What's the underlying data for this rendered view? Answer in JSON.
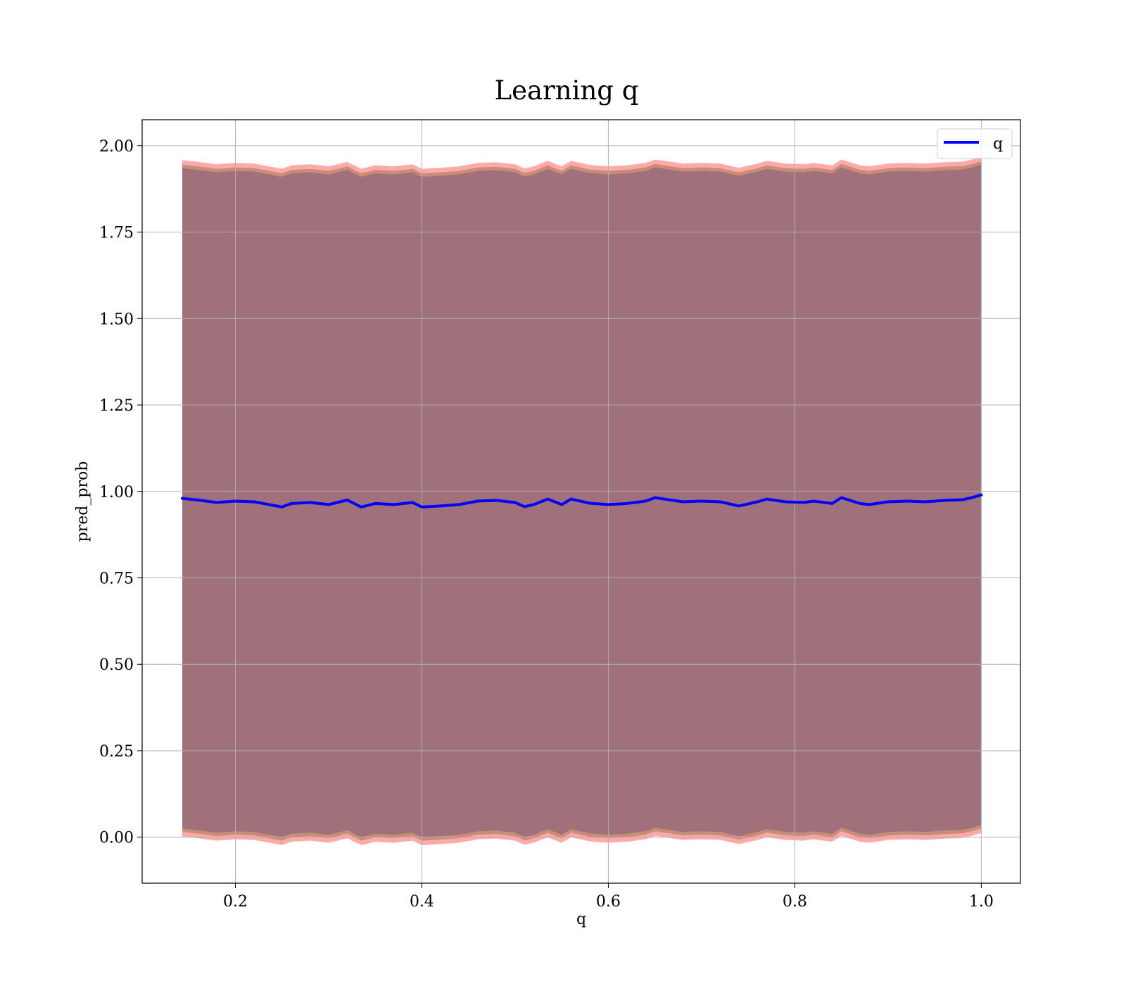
{
  "chart_data": {
    "type": "area",
    "title": "Learning q",
    "xlabel": "q",
    "ylabel": "pred_prob",
    "xlim": [
      0.1,
      1.042
    ],
    "ylim": [
      -0.133,
      2.075
    ],
    "xticks": [
      0.2,
      0.4,
      0.6,
      0.8,
      1.0
    ],
    "xtick_labels": [
      "0.2",
      "0.4",
      "0.6",
      "0.8",
      "1.0"
    ],
    "yticks": [
      0.0,
      0.25,
      0.5,
      0.75,
      1.0,
      1.25,
      1.5,
      1.75,
      2.0
    ],
    "ytick_labels": [
      "0.00",
      "0.25",
      "0.50",
      "0.75",
      "1.00",
      "1.25",
      "1.50",
      "1.75",
      "2.00"
    ],
    "grid": true,
    "legend_position": "top-right",
    "colors": {
      "line": "#0000ff",
      "band_inner": "#a0717a",
      "band_mid": "#c0886f",
      "band_outer": "#ff8c8c"
    },
    "x": [
      0.143,
      0.16,
      0.18,
      0.2,
      0.22,
      0.24,
      0.25,
      0.26,
      0.28,
      0.3,
      0.32,
      0.335,
      0.35,
      0.37,
      0.39,
      0.4,
      0.42,
      0.44,
      0.46,
      0.48,
      0.5,
      0.51,
      0.52,
      0.535,
      0.55,
      0.56,
      0.58,
      0.6,
      0.62,
      0.64,
      0.65,
      0.66,
      0.68,
      0.7,
      0.72,
      0.74,
      0.76,
      0.77,
      0.79,
      0.81,
      0.82,
      0.84,
      0.85,
      0.87,
      0.88,
      0.9,
      0.92,
      0.94,
      0.96,
      0.98,
      0.99,
      1.0
    ],
    "series": [
      {
        "name": "q",
        "values": [
          0.98,
          0.975,
          0.968,
          0.972,
          0.97,
          0.96,
          0.955,
          0.965,
          0.968,
          0.962,
          0.975,
          0.955,
          0.965,
          0.962,
          0.968,
          0.955,
          0.958,
          0.962,
          0.972,
          0.974,
          0.968,
          0.956,
          0.962,
          0.978,
          0.962,
          0.978,
          0.966,
          0.962,
          0.965,
          0.972,
          0.982,
          0.978,
          0.97,
          0.972,
          0.97,
          0.958,
          0.97,
          0.978,
          0.97,
          0.968,
          0.972,
          0.965,
          0.982,
          0.965,
          0.962,
          0.97,
          0.972,
          0.97,
          0.974,
          0.976,
          0.982,
          0.99
        ]
      }
    ],
    "band_halfwidths": [
      0.955,
      0.965,
      0.978
    ]
  }
}
